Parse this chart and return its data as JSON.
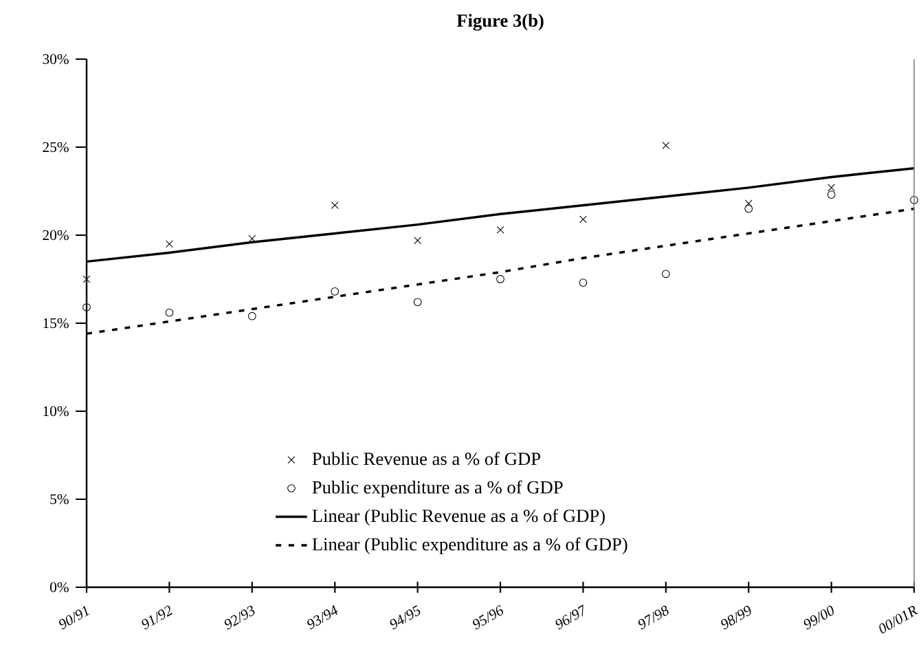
{
  "chart_data": {
    "type": "scatter",
    "title": "Figure 3(b)",
    "categories": [
      "90/91",
      "91/92",
      "92/93",
      "93/94",
      "94/95",
      "95/96",
      "96/97",
      "97/98",
      "98/99",
      "99/00",
      "00/01R"
    ],
    "series": [
      {
        "name": "Public Revenue as a % of GDP",
        "type": "scatter",
        "marker": "cross",
        "color": "#000000",
        "values": [
          17.5,
          19.5,
          19.8,
          21.7,
          19.7,
          20.3,
          20.9,
          25.1,
          21.8,
          22.7,
          null
        ]
      },
      {
        "name": "Public expenditure as a % of GDP",
        "type": "scatter",
        "marker": "circle",
        "color": "#000000",
        "values": [
          15.9,
          15.6,
          15.4,
          16.8,
          16.2,
          17.5,
          17.3,
          17.8,
          21.5,
          22.3,
          22.0
        ]
      },
      {
        "name": "Linear (Public Revenue as a % of GDP)",
        "type": "line",
        "marker": "none",
        "line_style": "solid",
        "color": "#000000",
        "values": [
          18.5,
          19.0,
          19.6,
          20.1,
          20.6,
          21.2,
          21.7,
          22.2,
          22.7,
          23.3,
          23.8
        ]
      },
      {
        "name": "Linear (Public expenditure as a % of GDP)",
        "type": "line",
        "marker": "none",
        "line_style": "dashed",
        "color": "#000000",
        "values": [
          14.4,
          15.1,
          15.8,
          16.5,
          17.2,
          17.9,
          18.7,
          19.4,
          20.1,
          20.8,
          21.5
        ]
      }
    ],
    "ylim": [
      0,
      30
    ],
    "yticks": [
      {
        "value": 0,
        "label": "0%"
      },
      {
        "value": 5,
        "label": "5%"
      },
      {
        "value": 10,
        "label": "10%"
      },
      {
        "value": 15,
        "label": "15%"
      },
      {
        "value": 20,
        "label": "20%"
      },
      {
        "value": 25,
        "label": "25%"
      },
      {
        "value": 30,
        "label": "30%"
      }
    ],
    "grid": false,
    "legend": "bottom"
  }
}
